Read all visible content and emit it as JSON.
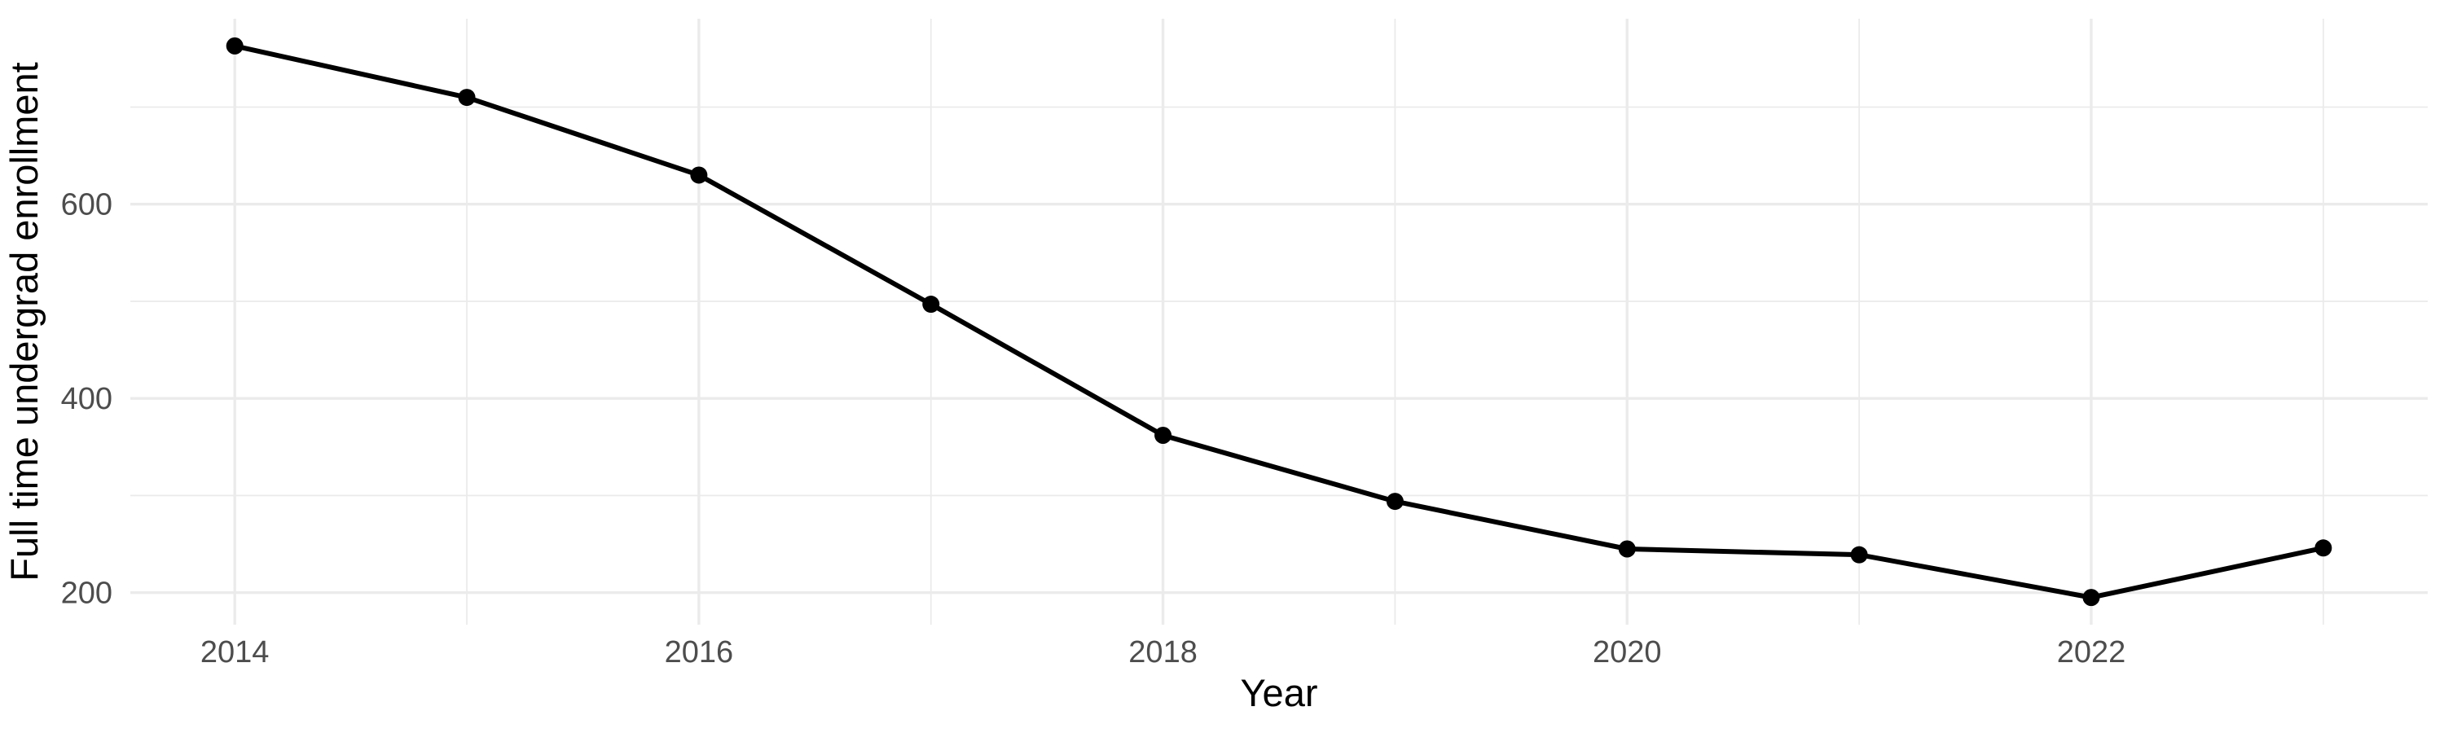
{
  "chart_data": {
    "type": "line",
    "title": "",
    "xlabel": "Year",
    "ylabel": "Full time undergrad enrollment",
    "x": [
      2014,
      2015,
      2016,
      2017,
      2018,
      2019,
      2020,
      2021,
      2022,
      2023
    ],
    "series": [
      {
        "name": "Full time undergrad enrollment",
        "values": [
          763,
          710,
          630,
          497,
          362,
          294,
          245,
          239,
          195,
          246
        ]
      }
    ],
    "x_ticks": {
      "major": [
        2014,
        2016,
        2018,
        2020,
        2022
      ],
      "major_labels": [
        "2014",
        "2016",
        "2018",
        "2020",
        "2022"
      ],
      "minor": [
        2015,
        2017,
        2019,
        2021,
        2023
      ]
    },
    "y_ticks": {
      "major": [
        200,
        400,
        600
      ],
      "major_labels": [
        "200",
        "400",
        "600"
      ],
      "minor": [
        300,
        500,
        700
      ]
    },
    "xlim": [
      2013.55,
      2023.45
    ],
    "ylim": [
      167,
      791
    ],
    "grid": true,
    "legend": "none",
    "marker": "circle",
    "colors": {
      "line": "#000000",
      "marker": "#000000",
      "grid": "#EBEBEB",
      "tick_label": "#4D4D4D",
      "axis_title": "#000000",
      "background": "#FFFFFF"
    }
  }
}
